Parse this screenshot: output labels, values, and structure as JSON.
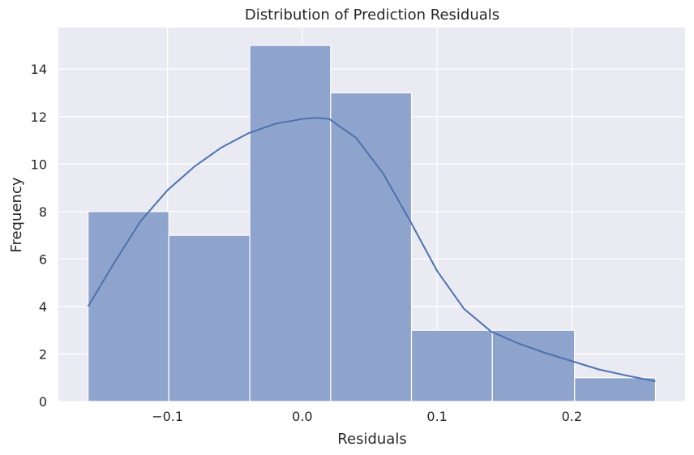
{
  "chart_data": {
    "type": "bar",
    "title": "Distribution of Prediction Residuals",
    "xlabel": "Residuals",
    "ylabel": "Frequency",
    "xlim": [
      -0.181,
      0.284
    ],
    "ylim": [
      0,
      15.75
    ],
    "grid": true,
    "bins": [
      {
        "x0": -0.159,
        "x1": -0.099,
        "value": 8
      },
      {
        "x0": -0.099,
        "x1": -0.039,
        "value": 7
      },
      {
        "x0": -0.039,
        "x1": 0.021,
        "value": 15
      },
      {
        "x0": 0.021,
        "x1": 0.081,
        "value": 13
      },
      {
        "x0": 0.081,
        "x1": 0.141,
        "value": 3
      },
      {
        "x0": 0.141,
        "x1": 0.202,
        "value": 3
      },
      {
        "x0": 0.202,
        "x1": 0.262,
        "value": 1
      }
    ],
    "kde": {
      "x": [
        -0.159,
        -0.14,
        -0.12,
        -0.1,
        -0.08,
        -0.06,
        -0.04,
        -0.02,
        0.0,
        0.01,
        0.02,
        0.04,
        0.06,
        0.08,
        0.1,
        0.12,
        0.14,
        0.16,
        0.18,
        0.2,
        0.22,
        0.24,
        0.262
      ],
      "y": [
        4.0,
        5.8,
        7.6,
        8.9,
        9.9,
        10.7,
        11.3,
        11.7,
        11.9,
        11.95,
        11.9,
        11.1,
        9.6,
        7.6,
        5.5,
        3.9,
        2.95,
        2.45,
        2.05,
        1.7,
        1.35,
        1.1,
        0.85
      ]
    },
    "xticks": [
      -0.1,
      0.0,
      0.1,
      0.2
    ],
    "xtick_labels": [
      "−0.1",
      "0.0",
      "0.1",
      "0.2"
    ],
    "yticks": [
      0,
      2,
      4,
      6,
      8,
      10,
      12,
      14
    ],
    "ytick_labels": [
      "0",
      "2",
      "4",
      "6",
      "8",
      "10",
      "12",
      "14"
    ],
    "colors": {
      "background": "#eaeaf2",
      "grid": "#ffffff",
      "bar_fill": "#8fa4cc",
      "bar_edge": "#ffffff",
      "kde_line": "#4c72b0"
    }
  }
}
